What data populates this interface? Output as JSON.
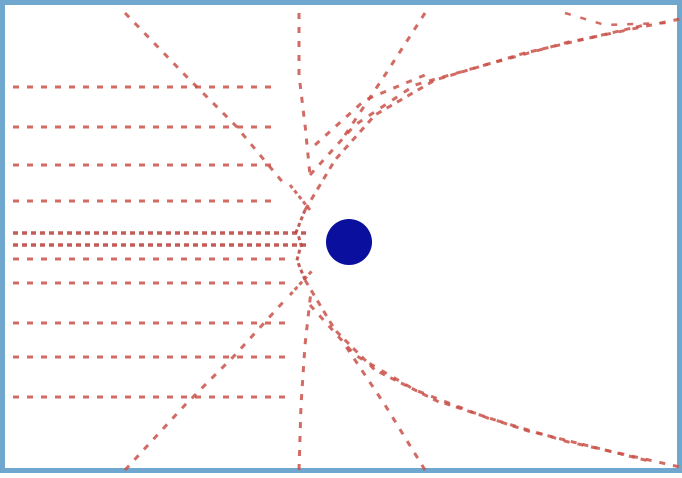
{
  "diagram": {
    "streamline_color": "#c9524a",
    "streamline_color_dense": "#b8403a",
    "body_color": "#0a0f9e",
    "border_color": "#6fa7cf",
    "background_color": "#ffffff"
  }
}
